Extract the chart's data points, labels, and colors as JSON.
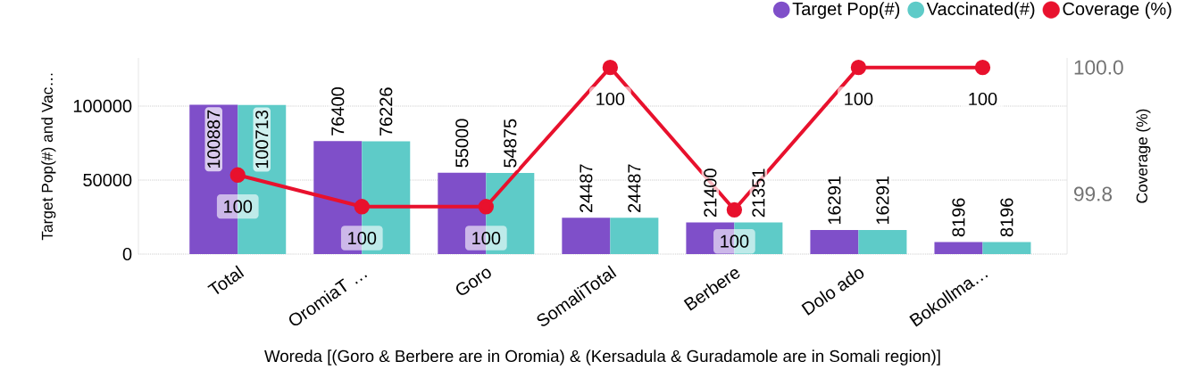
{
  "chart_data": {
    "type": "bar",
    "categories": [
      "Total",
      "OromiaT …",
      "Goro",
      "SomaliTotal",
      "Berbere",
      "Dolo ado",
      "Bokollma…"
    ],
    "xlabel": "Woreda [(Goro & Berbere are in Oromia) & (Kersadula & Guradamole are in Somali region)]",
    "ylabel": "Target Pop(#) and Vac…",
    "y2label": "Coverage (%)",
    "ylim": [
      0,
      132500
    ],
    "yticks": [
      0,
      50000,
      100000
    ],
    "y2lim": [
      99.705,
      100.015
    ],
    "y2ticks": [
      99.8,
      {
        "value": 100,
        "label": "100.0"
      }
    ],
    "grid": "y",
    "legend": "top right",
    "series": [
      {
        "name": "Target Pop(#)",
        "color": "#7f4fc9",
        "values": [
          100887,
          76400,
          55000,
          24487,
          21400,
          16291,
          8196
        ],
        "value_labels": [
          "100887",
          "76400",
          "55000",
          "24487",
          "21400",
          "16291",
          "8196"
        ]
      },
      {
        "name": "Vaccinated(#)",
        "color": "#5ecbc8",
        "values": [
          100713,
          76226,
          54875,
          24487,
          21351,
          16291,
          8196
        ],
        "value_labels": [
          "100713",
          "76226",
          "54875",
          "24487",
          "21351",
          "16291",
          "8196"
        ]
      },
      {
        "name": "Coverage (%)",
        "type": "line",
        "axis": "y2",
        "marker": "circle",
        "color": "#e8112d",
        "values": [
          99.83,
          99.78,
          99.78,
          100,
          99.775,
          100,
          100
        ],
        "value_labels": [
          "100",
          "100",
          "100",
          "100",
          "100",
          "100",
          "100"
        ]
      }
    ]
  }
}
